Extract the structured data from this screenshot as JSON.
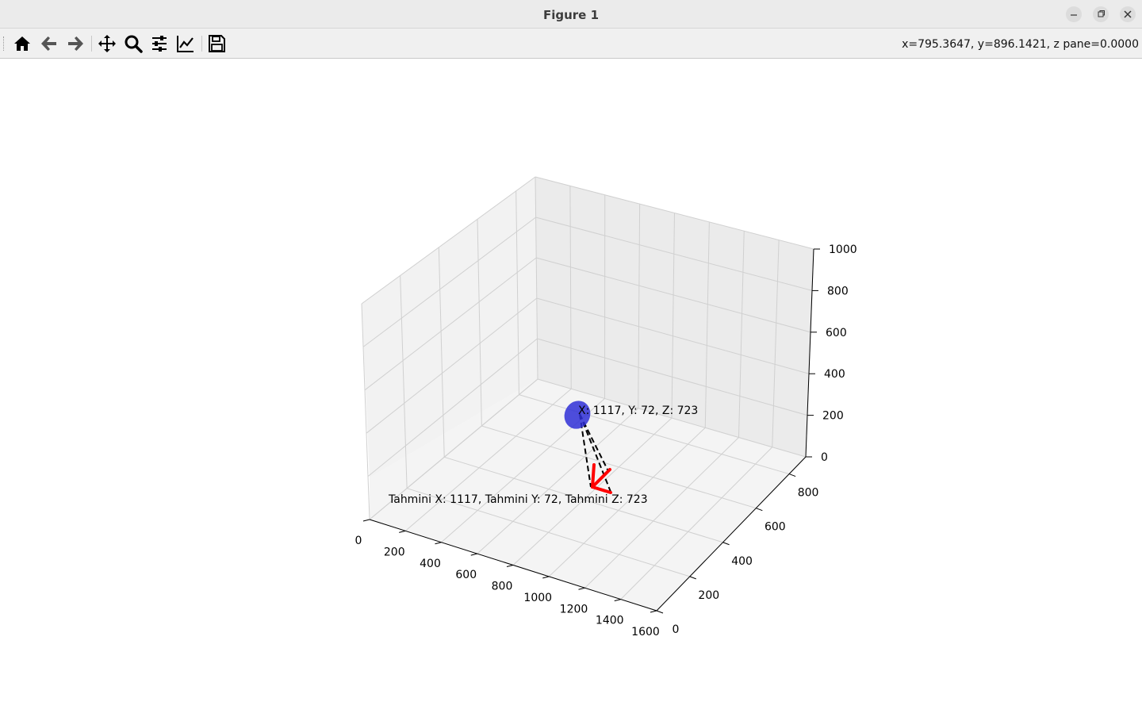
{
  "window": {
    "title": "Figure 1"
  },
  "toolbar": {
    "tools": [
      {
        "name": "home-icon"
      },
      {
        "name": "back-arrow-icon"
      },
      {
        "name": "forward-arrow-icon"
      },
      {
        "name": "pan-move-icon"
      },
      {
        "name": "zoom-magnifier-icon"
      },
      {
        "name": "configure-subplots-icon"
      },
      {
        "name": "edit-axis-icon"
      },
      {
        "name": "save-figure-icon"
      }
    ],
    "coords": "x=795.3647, y=896.1421, z pane=0.0000"
  },
  "chart_data": {
    "type": "scatter",
    "axes3d": true,
    "x_ticks": [
      "0",
      "200",
      "400",
      "600",
      "800",
      "1000",
      "1200",
      "1400",
      "1600"
    ],
    "y_ticks": [
      "0",
      "200",
      "400",
      "600",
      "800"
    ],
    "z_ticks": [
      "0",
      "200",
      "400",
      "600",
      "800",
      "1000"
    ],
    "xlim": [
      0,
      1600
    ],
    "ylim": [
      0,
      900
    ],
    "zlim": [
      0,
      1000
    ],
    "grid": true,
    "annotations": [
      {
        "text": "X: 1117, Y: 72, Z: 723",
        "color": "#000000"
      },
      {
        "text": "Tahmini X: 1117, Tahmini Y: 72, Tahmini Z: 723",
        "color": "#000000"
      }
    ],
    "marker_color": "#2f2fd6",
    "arrow_color": "#ff0000",
    "line_style": "dashed"
  }
}
